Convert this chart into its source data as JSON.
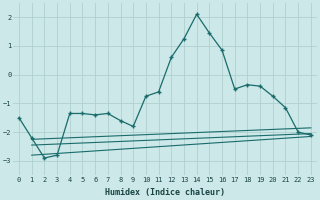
{
  "xlabel": "Humidex (Indice chaleur)",
  "bg_color": "#cce8e8",
  "grid_color": "#b0d0d0",
  "line_color": "#1a6b6b",
  "xlim": [
    -0.5,
    23.5
  ],
  "ylim": [
    -3.5,
    2.5
  ],
  "xticks": [
    0,
    1,
    2,
    3,
    4,
    5,
    6,
    7,
    8,
    9,
    10,
    11,
    12,
    13,
    14,
    15,
    16,
    17,
    18,
    19,
    20,
    21,
    22,
    23
  ],
  "yticks": [
    -3,
    -2,
    -1,
    0,
    1,
    2
  ],
  "main_x": [
    0,
    1,
    2,
    3,
    4,
    5,
    6,
    7,
    8,
    9,
    10,
    11,
    12,
    13,
    14,
    15,
    16,
    17,
    18,
    19,
    20,
    21,
    22,
    23
  ],
  "main_y": [
    -1.5,
    -2.2,
    -2.9,
    -2.8,
    -1.35,
    -1.35,
    -1.4,
    -1.35,
    -1.6,
    -1.8,
    -0.75,
    -0.6,
    0.6,
    1.25,
    2.1,
    1.45,
    0.85,
    -0.5,
    -0.35,
    -0.4,
    -0.75,
    -1.15,
    -2.0,
    -2.1
  ],
  "line1_x": [
    1,
    23
  ],
  "line1_y": [
    -2.25,
    -1.85
  ],
  "line2_x": [
    1,
    23
  ],
  "line2_y": [
    -2.45,
    -2.05
  ],
  "line3_x": [
    1,
    23
  ],
  "line3_y": [
    -2.8,
    -2.15
  ]
}
